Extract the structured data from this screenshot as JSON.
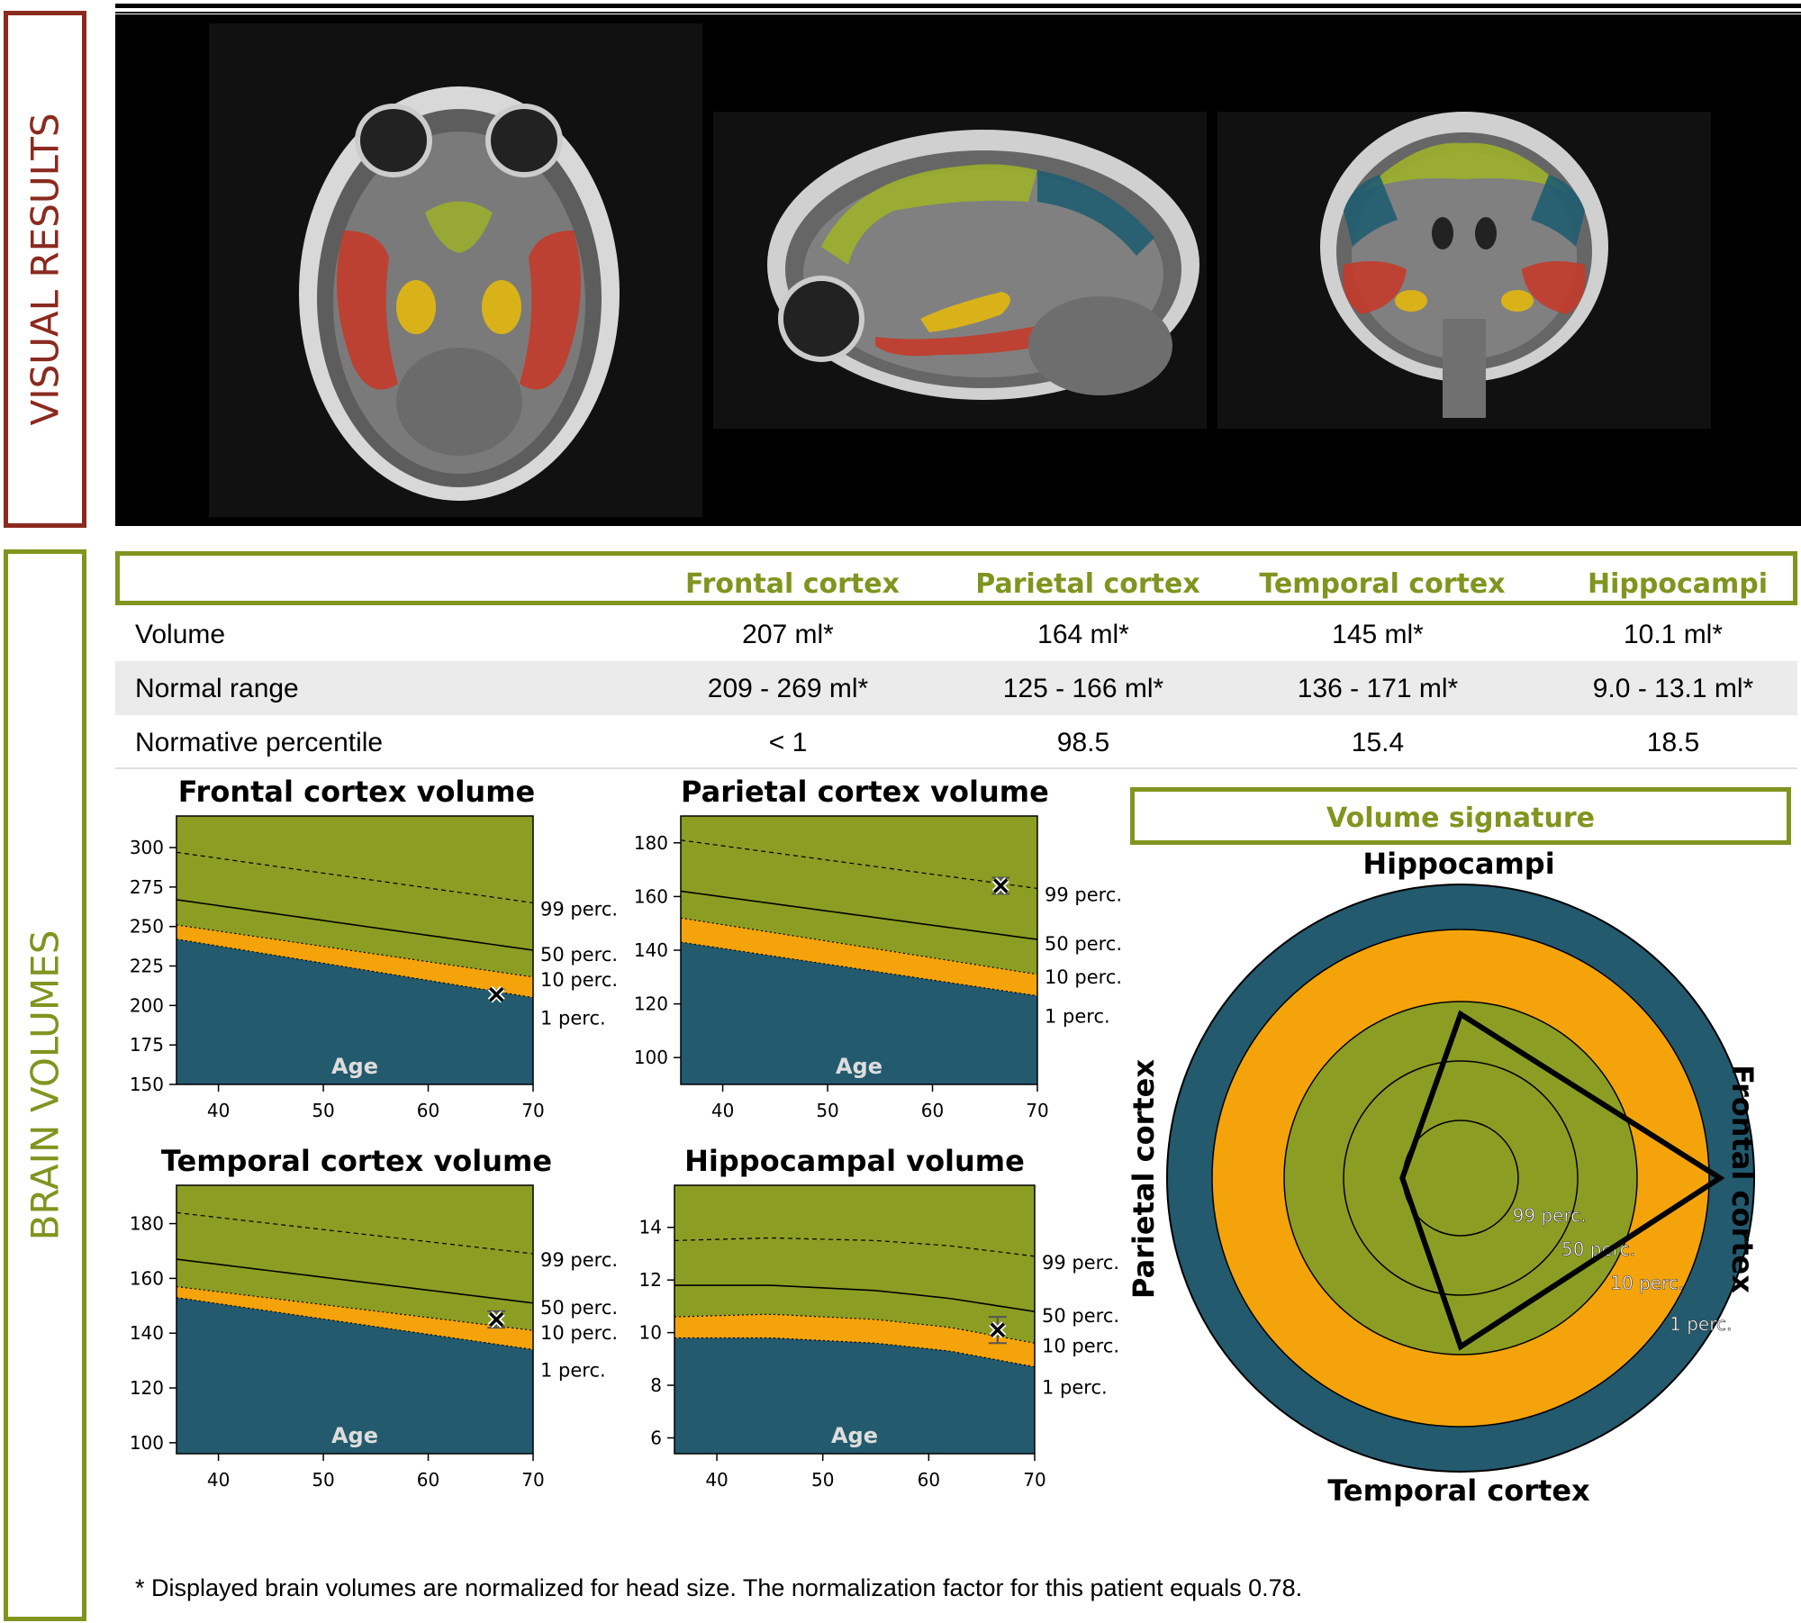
{
  "sections": {
    "visual_results_label": "VISUAL RESULTS",
    "brain_volumes_label": "BRAIN VOLUMES"
  },
  "mri_views": [
    {
      "name": "axial-view",
      "segments": [
        "red",
        "yellow",
        "olive"
      ]
    },
    {
      "name": "sagittal-view",
      "segments": [
        "olive",
        "teal",
        "yellow",
        "red"
      ]
    },
    {
      "name": "coronal-view",
      "segments": [
        "olive",
        "teal",
        "red",
        "yellow"
      ]
    }
  ],
  "colors": {
    "header_green": "#7f951f",
    "visual_red": "#8b2a1f",
    "band_olive": "#8b9e23",
    "band_orange": "#f5a30a",
    "band_teal": "#235a6e",
    "seg_red": "#c33b2a",
    "seg_yellow": "#d9b21a",
    "seg_olive": "#9cb02a",
    "seg_teal": "#1f5d70"
  },
  "table": {
    "columns": [
      "",
      "Frontal cortex",
      "Parietal cortex",
      "Temporal cortex",
      "Hippocampi"
    ],
    "rows": [
      {
        "label": "Volume",
        "values": [
          "207 ml*",
          "164 ml*",
          "145 ml*",
          "10.1 ml*"
        ]
      },
      {
        "label": "Normal range",
        "values": [
          "209 - 269 ml*",
          "125 - 166 ml*",
          "136 - 171 ml*",
          "9.0 - 13.1 ml*"
        ]
      },
      {
        "label": "Normative percentile",
        "values": [
          "< 1",
          "98.5",
          "15.4",
          "18.5"
        ]
      }
    ]
  },
  "chart_data": [
    {
      "type": "area",
      "title": "Frontal cortex volume",
      "xlabel": "Age",
      "xlim": [
        36,
        70
      ],
      "ylim": [
        150,
        320
      ],
      "xticks": [
        40,
        50,
        60,
        70
      ],
      "yticks": [
        150,
        175,
        200,
        225,
        250,
        275,
        300
      ],
      "curves": [
        {
          "name": "99 perc.",
          "points": [
            [
              36,
              297
            ],
            [
              70,
              265
            ]
          ],
          "style": "dashed"
        },
        {
          "name": "50 perc.",
          "points": [
            [
              36,
              267
            ],
            [
              70,
              235
            ]
          ],
          "style": "solid"
        },
        {
          "name": "10 perc.",
          "points": [
            [
              36,
              251
            ],
            [
              70,
              218
            ]
          ],
          "style": "dotted"
        },
        {
          "name": "1 perc.",
          "points": [
            [
              36,
              242
            ],
            [
              70,
              205
            ]
          ],
          "style": "dotted"
        }
      ],
      "patient": {
        "age": 66.5,
        "volume": 207,
        "err": 3
      }
    },
    {
      "type": "area",
      "title": "Parietal cortex volume",
      "xlabel": "Age",
      "xlim": [
        36,
        70
      ],
      "ylim": [
        90,
        190
      ],
      "xticks": [
        40,
        50,
        60,
        70
      ],
      "yticks": [
        100,
        120,
        140,
        160,
        180
      ],
      "curves": [
        {
          "name": "99 perc.",
          "points": [
            [
              36,
              181
            ],
            [
              70,
              163
            ]
          ],
          "style": "dashed"
        },
        {
          "name": "50 perc.",
          "points": [
            [
              36,
              162
            ],
            [
              70,
              144
            ]
          ],
          "style": "solid"
        },
        {
          "name": "10 perc.",
          "points": [
            [
              36,
              152
            ],
            [
              70,
              131
            ]
          ],
          "style": "dotted"
        },
        {
          "name": "1 perc.",
          "points": [
            [
              36,
              143
            ],
            [
              70,
              123
            ]
          ],
          "style": "dotted"
        }
      ],
      "patient": {
        "age": 66.5,
        "volume": 164,
        "err": 3
      }
    },
    {
      "type": "area",
      "title": "Temporal cortex volume",
      "xlabel": "Age",
      "xlim": [
        36,
        70
      ],
      "ylim": [
        96,
        194
      ],
      "xticks": [
        40,
        50,
        60,
        70
      ],
      "yticks": [
        100,
        120,
        140,
        160,
        180
      ],
      "curves": [
        {
          "name": "99 perc.",
          "points": [
            [
              36,
              184
            ],
            [
              70,
              169
            ]
          ],
          "style": "dashed"
        },
        {
          "name": "50 perc.",
          "points": [
            [
              36,
              167
            ],
            [
              70,
              151
            ]
          ],
          "style": "solid"
        },
        {
          "name": "10 perc.",
          "points": [
            [
              36,
              157
            ],
            [
              70,
              141
            ]
          ],
          "style": "dotted"
        },
        {
          "name": "1 perc.",
          "points": [
            [
              36,
              153
            ],
            [
              70,
              134
            ]
          ],
          "style": "dotted"
        }
      ],
      "patient": {
        "age": 66.5,
        "volume": 145,
        "err": 3
      }
    },
    {
      "type": "area",
      "title": "Hippocampal volume",
      "xlabel": "Age",
      "xlim": [
        36,
        70
      ],
      "ylim": [
        5.4,
        15.6
      ],
      "xticks": [
        40,
        50,
        60,
        70
      ],
      "yticks": [
        6,
        8,
        10,
        12,
        14
      ],
      "curves": [
        {
          "name": "99 perc.",
          "points": [
            [
              36,
              13.5
            ],
            [
              45,
              13.6
            ],
            [
              55,
              13.5
            ],
            [
              62,
              13.3
            ],
            [
              70,
              12.9
            ]
          ],
          "style": "dashed"
        },
        {
          "name": "50 perc.",
          "points": [
            [
              36,
              11.8
            ],
            [
              45,
              11.8
            ],
            [
              55,
              11.6
            ],
            [
              62,
              11.3
            ],
            [
              70,
              10.8
            ]
          ],
          "style": "solid"
        },
        {
          "name": "10 perc.",
          "points": [
            [
              36,
              10.6
            ],
            [
              45,
              10.7
            ],
            [
              55,
              10.5
            ],
            [
              62,
              10.2
            ],
            [
              70,
              9.6
            ]
          ],
          "style": "dotted"
        },
        {
          "name": "1 perc.",
          "points": [
            [
              36,
              9.8
            ],
            [
              45,
              9.8
            ],
            [
              55,
              9.6
            ],
            [
              62,
              9.3
            ],
            [
              70,
              8.7
            ]
          ],
          "style": "dotted"
        }
      ],
      "patient": {
        "age": 66.5,
        "volume": 10.1,
        "err": 0.5
      }
    }
  ],
  "radar": {
    "title": "Volume signature",
    "axes": [
      "Hippocampi",
      "Frontal cortex",
      "Temporal cortex",
      "Parietal cortex"
    ],
    "ring_labels": [
      "99 perc.",
      "50 perc.",
      "10 perc.",
      "1 perc."
    ],
    "percentiles": {
      "Hippocampi": 18.5,
      "Frontal cortex": 0.5,
      "Temporal cortex": 15.4,
      "Parietal cortex": 98.5
    }
  },
  "footnote": "* Displayed brain volumes are normalized for head size. The normalization factor for this patient equals 0.78."
}
